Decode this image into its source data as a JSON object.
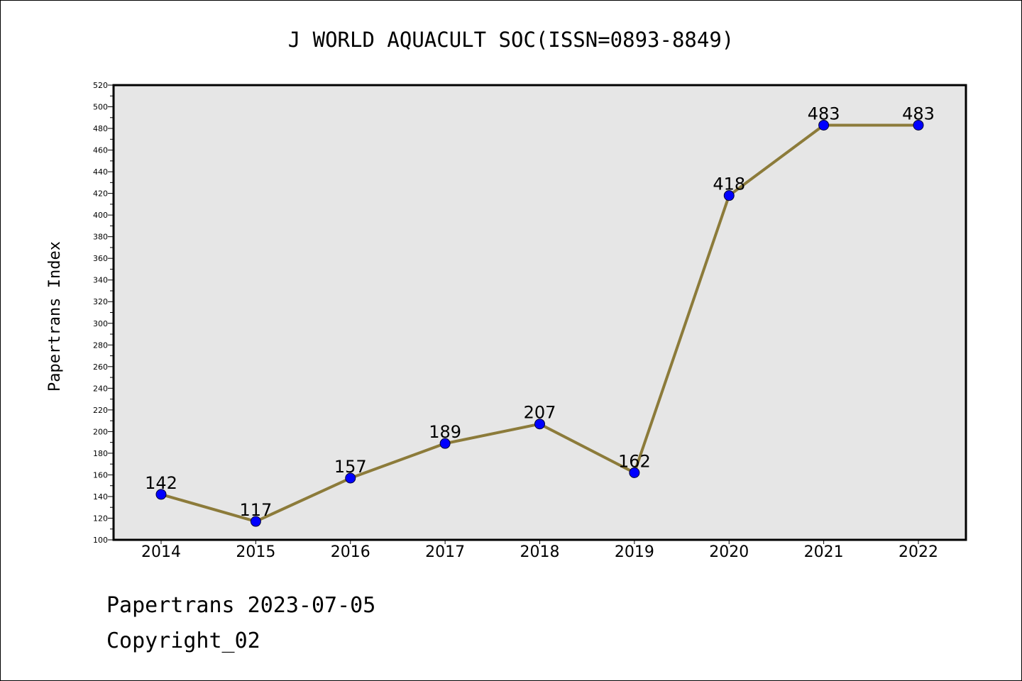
{
  "chart_data": {
    "type": "line",
    "title": "J WORLD AQUACULT SOC(ISSN=0893-8849)",
    "xlabel": "",
    "ylabel": "Papertrans Index",
    "categories": [
      "2014",
      "2015",
      "2016",
      "2017",
      "2018",
      "2019",
      "2020",
      "2021",
      "2022"
    ],
    "series": [
      {
        "values": [
          142,
          117,
          157,
          189,
          207,
          162,
          418,
          483,
          483
        ]
      }
    ],
    "ylim": [
      100,
      520
    ],
    "yticks": [
      100,
      120,
      140,
      160,
      180,
      200,
      220,
      240,
      260,
      280,
      300,
      320,
      340,
      360,
      380,
      400,
      420,
      440,
      460,
      480,
      500,
      520
    ],
    "grid": false,
    "legend": "none",
    "colors": {
      "line": "#8c7b3a",
      "marker": "#0000ff",
      "plot_bg": "#e6e6e6"
    }
  },
  "footer": {
    "line1": "Papertrans 2023-07-05",
    "line2": "Copyright_02"
  }
}
